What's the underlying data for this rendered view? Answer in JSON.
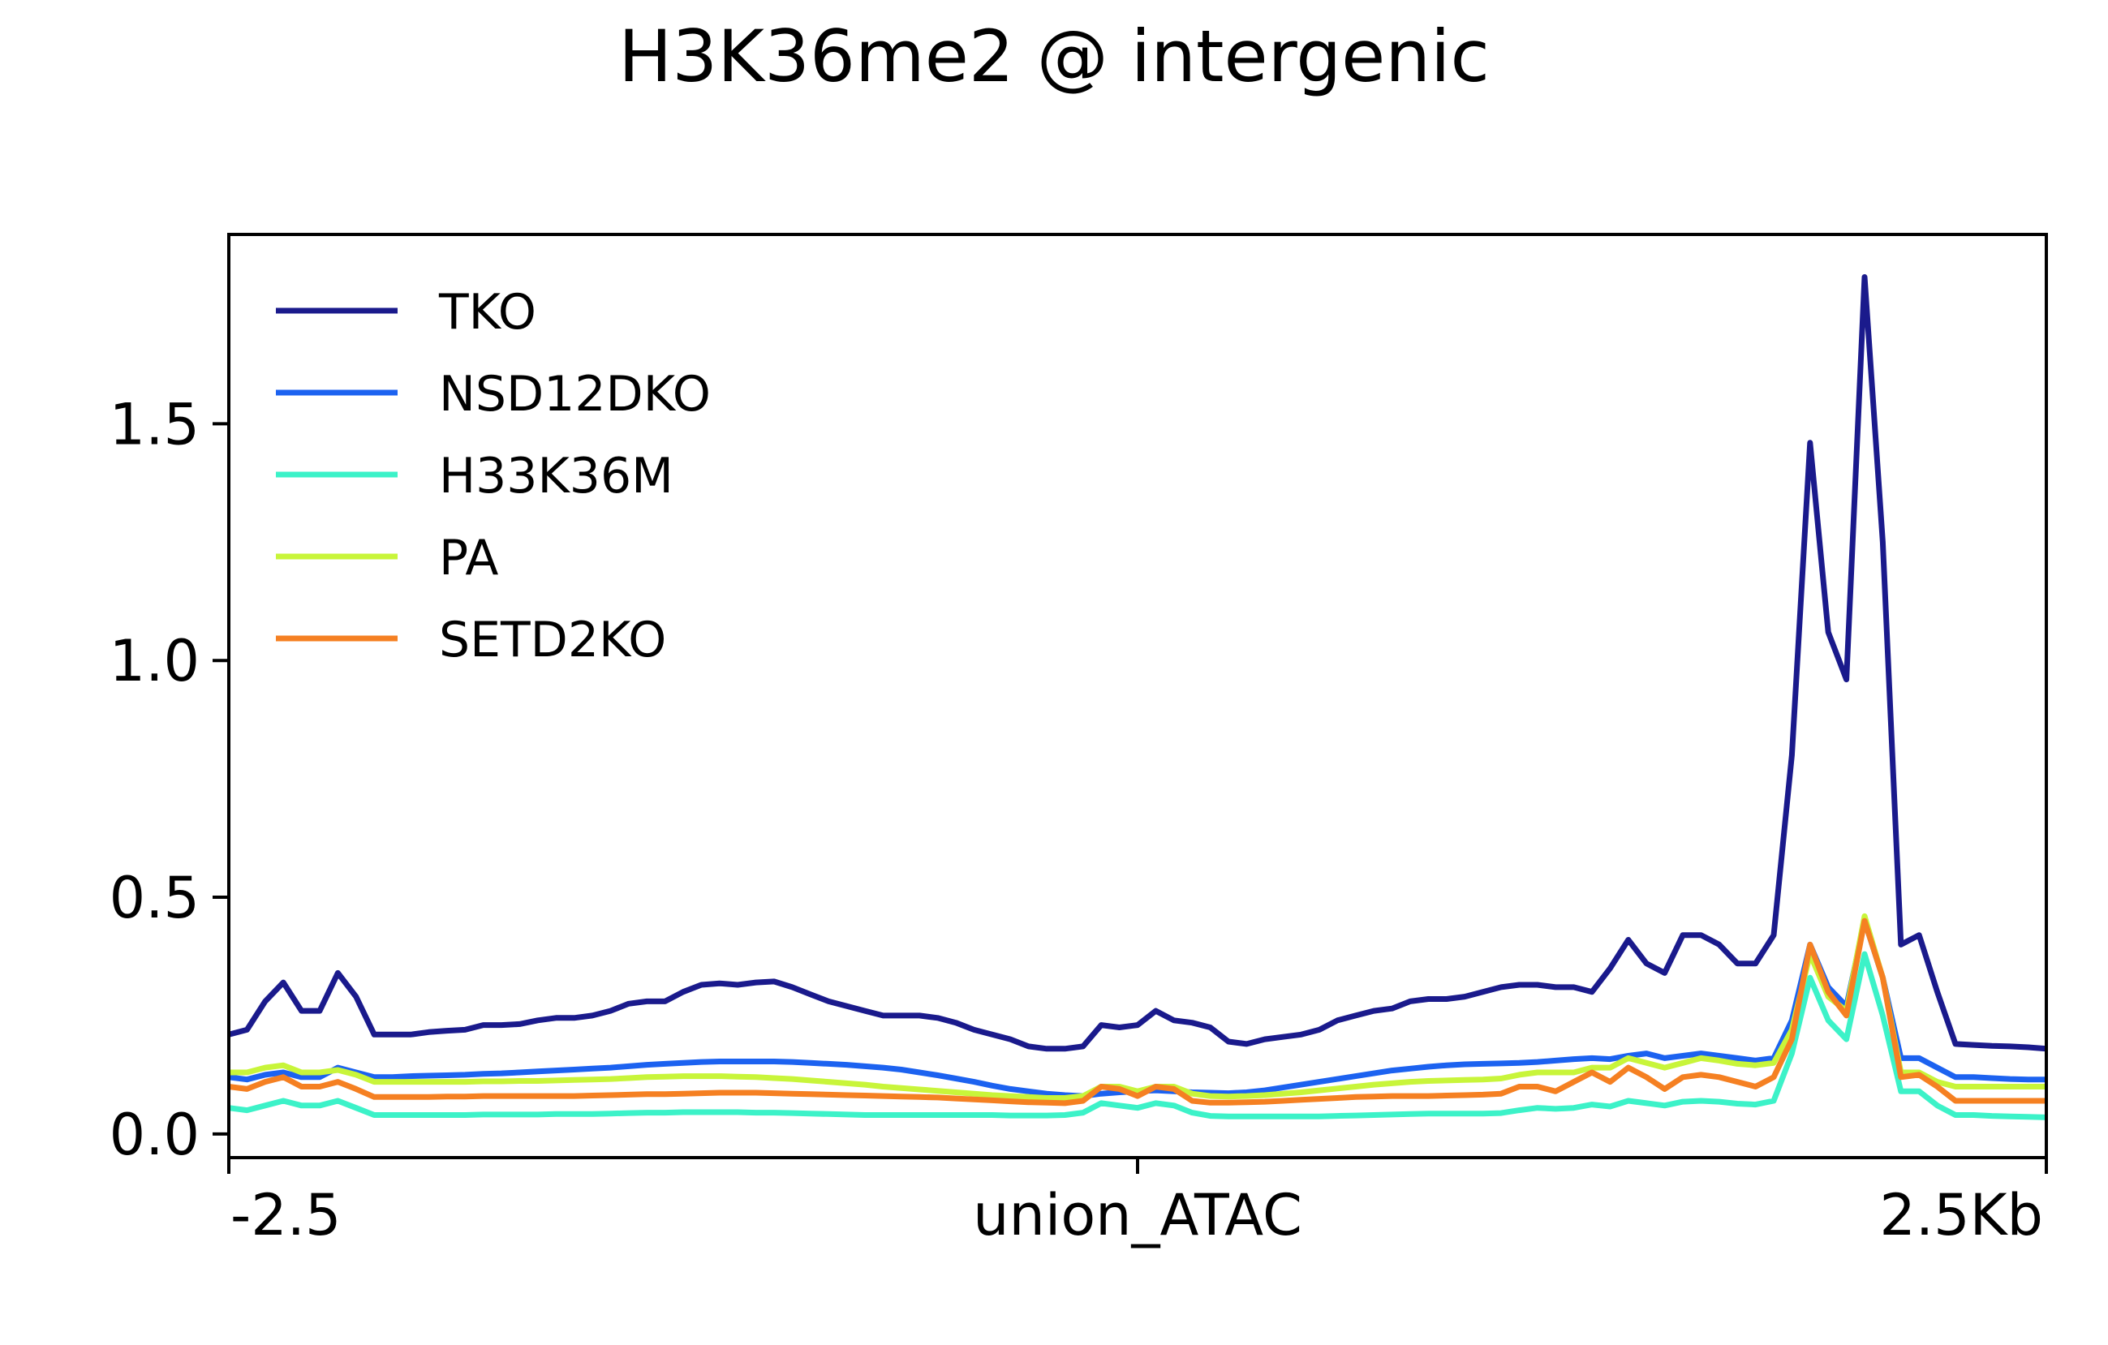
{
  "chart_data": {
    "type": "line",
    "title": "H3K36me2 @ intergenic",
    "xlabel": "",
    "ylabel": "",
    "xlim": [
      0,
      100
    ],
    "ylim": [
      -0.05,
      1.9
    ],
    "x_ticks": [
      {
        "value": 0,
        "label": "-2.5"
      },
      {
        "value": 50,
        "label": "union_ATAC"
      },
      {
        "value": 100,
        "label": "2.5Kb"
      }
    ],
    "y_ticks": [
      {
        "value": 0.0,
        "label": "0.0"
      },
      {
        "value": 0.5,
        "label": "0.5"
      },
      {
        "value": 1.0,
        "label": "1.0"
      },
      {
        "value": 1.5,
        "label": "1.5"
      }
    ],
    "grid": false,
    "legend_position": "top-left",
    "x": [
      0,
      1,
      2,
      3,
      4,
      5,
      6,
      7,
      8,
      9,
      10,
      11,
      12,
      13,
      14,
      15,
      16,
      17,
      18,
      19,
      20,
      21,
      22,
      23,
      24,
      25,
      26,
      27,
      28,
      29,
      30,
      31,
      32,
      33,
      34,
      35,
      36,
      37,
      38,
      39,
      40,
      41,
      42,
      43,
      44,
      45,
      46,
      47,
      48,
      49,
      50,
      51,
      52,
      53,
      54,
      55,
      56,
      57,
      58,
      59,
      60,
      61,
      62,
      63,
      64,
      65,
      66,
      67,
      68,
      69,
      70,
      71,
      72,
      73,
      74,
      75,
      76,
      77,
      78,
      79,
      80,
      81,
      82,
      83,
      84,
      85,
      86,
      87,
      88,
      89,
      90,
      91,
      92,
      93,
      94,
      95,
      96,
      97,
      98,
      99,
      100
    ],
    "series": [
      {
        "name": "TKO",
        "color": "#1a1a8c",
        "values": [
          0.21,
          0.22,
          0.28,
          0.32,
          0.26,
          0.26,
          0.34,
          0.29,
          0.21,
          0.21,
          0.21,
          0.215,
          0.218,
          0.22,
          0.23,
          0.23,
          0.232,
          0.24,
          0.245,
          0.245,
          0.25,
          0.26,
          0.275,
          0.28,
          0.28,
          0.3,
          0.315,
          0.318,
          0.315,
          0.32,
          0.322,
          0.31,
          0.295,
          0.28,
          0.27,
          0.26,
          0.25,
          0.25,
          0.25,
          0.245,
          0.235,
          0.22,
          0.21,
          0.2,
          0.185,
          0.18,
          0.18,
          0.185,
          0.23,
          0.225,
          0.23,
          0.26,
          0.24,
          0.235,
          0.225,
          0.195,
          0.19,
          0.2,
          0.205,
          0.21,
          0.22,
          0.24,
          0.25,
          0.26,
          0.265,
          0.28,
          0.285,
          0.285,
          0.29,
          0.3,
          0.31,
          0.315,
          0.315,
          0.31,
          0.31,
          0.3,
          0.35,
          0.41,
          0.36,
          0.34,
          0.42,
          0.42,
          0.4,
          0.36,
          0.36,
          0.42,
          0.8,
          1.46,
          1.06,
          0.96,
          1.81,
          1.25,
          0.4,
          0.42,
          0.3,
          0.19,
          0.188,
          0.186,
          0.185,
          0.183,
          0.18
        ]
      },
      {
        "name": "NSD12DKO",
        "color": "#1c62f0",
        "values": [
          0.12,
          0.115,
          0.125,
          0.13,
          0.12,
          0.12,
          0.14,
          0.13,
          0.12,
          0.12,
          0.122,
          0.123,
          0.124,
          0.125,
          0.127,
          0.128,
          0.13,
          0.132,
          0.134,
          0.136,
          0.138,
          0.14,
          0.143,
          0.146,
          0.148,
          0.15,
          0.152,
          0.153,
          0.153,
          0.153,
          0.153,
          0.152,
          0.15,
          0.148,
          0.146,
          0.143,
          0.14,
          0.136,
          0.13,
          0.124,
          0.117,
          0.11,
          0.102,
          0.095,
          0.09,
          0.085,
          0.082,
          0.08,
          0.085,
          0.088,
          0.09,
          0.092,
          0.09,
          0.088,
          0.087,
          0.086,
          0.088,
          0.092,
          0.098,
          0.104,
          0.11,
          0.116,
          0.122,
          0.128,
          0.134,
          0.138,
          0.142,
          0.145,
          0.147,
          0.148,
          0.149,
          0.15,
          0.152,
          0.155,
          0.158,
          0.16,
          0.158,
          0.165,
          0.17,
          0.16,
          0.165,
          0.17,
          0.165,
          0.16,
          0.155,
          0.16,
          0.24,
          0.4,
          0.31,
          0.27,
          0.45,
          0.33,
          0.16,
          0.16,
          0.14,
          0.12,
          0.12,
          0.118,
          0.116,
          0.115,
          0.115
        ]
      },
      {
        "name": "H33K36M",
        "color": "#3cf2c8",
        "values": [
          0.055,
          0.05,
          0.06,
          0.07,
          0.06,
          0.06,
          0.07,
          0.055,
          0.04,
          0.04,
          0.04,
          0.04,
          0.04,
          0.04,
          0.041,
          0.041,
          0.041,
          0.041,
          0.042,
          0.042,
          0.042,
          0.043,
          0.044,
          0.045,
          0.045,
          0.046,
          0.046,
          0.046,
          0.046,
          0.045,
          0.045,
          0.044,
          0.043,
          0.042,
          0.041,
          0.04,
          0.04,
          0.04,
          0.04,
          0.04,
          0.04,
          0.04,
          0.04,
          0.039,
          0.039,
          0.039,
          0.04,
          0.045,
          0.065,
          0.06,
          0.055,
          0.065,
          0.06,
          0.045,
          0.038,
          0.037,
          0.037,
          0.037,
          0.037,
          0.037,
          0.037,
          0.038,
          0.039,
          0.04,
          0.041,
          0.042,
          0.043,
          0.043,
          0.043,
          0.043,
          0.044,
          0.05,
          0.055,
          0.053,
          0.055,
          0.062,
          0.058,
          0.07,
          0.065,
          0.06,
          0.068,
          0.07,
          0.068,
          0.064,
          0.062,
          0.07,
          0.17,
          0.33,
          0.24,
          0.2,
          0.38,
          0.25,
          0.09,
          0.09,
          0.06,
          0.04,
          0.04,
          0.038,
          0.037,
          0.036,
          0.035
        ]
      },
      {
        "name": "PA",
        "color": "#c8f53a",
        "values": [
          0.13,
          0.13,
          0.14,
          0.145,
          0.13,
          0.13,
          0.135,
          0.125,
          0.11,
          0.11,
          0.11,
          0.11,
          0.11,
          0.11,
          0.111,
          0.111,
          0.112,
          0.112,
          0.113,
          0.114,
          0.115,
          0.116,
          0.118,
          0.12,
          0.121,
          0.122,
          0.122,
          0.122,
          0.121,
          0.12,
          0.118,
          0.116,
          0.113,
          0.11,
          0.107,
          0.104,
          0.1,
          0.097,
          0.094,
          0.091,
          0.088,
          0.085,
          0.082,
          0.08,
          0.078,
          0.076,
          0.076,
          0.08,
          0.1,
          0.1,
          0.09,
          0.1,
          0.1,
          0.085,
          0.08,
          0.079,
          0.08,
          0.082,
          0.085,
          0.088,
          0.092,
          0.096,
          0.1,
          0.104,
          0.107,
          0.11,
          0.112,
          0.113,
          0.114,
          0.115,
          0.117,
          0.125,
          0.13,
          0.13,
          0.13,
          0.14,
          0.14,
          0.16,
          0.15,
          0.14,
          0.15,
          0.16,
          0.155,
          0.148,
          0.145,
          0.15,
          0.22,
          0.38,
          0.29,
          0.26,
          0.46,
          0.33,
          0.13,
          0.13,
          0.11,
          0.1,
          0.1,
          0.1,
          0.1,
          0.1,
          0.1
        ]
      },
      {
        "name": "SETD2KO",
        "color": "#f58022",
        "values": [
          0.1,
          0.095,
          0.11,
          0.12,
          0.1,
          0.1,
          0.11,
          0.095,
          0.078,
          0.078,
          0.078,
          0.078,
          0.079,
          0.079,
          0.08,
          0.08,
          0.08,
          0.08,
          0.08,
          0.08,
          0.081,
          0.082,
          0.083,
          0.084,
          0.084,
          0.085,
          0.086,
          0.087,
          0.087,
          0.087,
          0.086,
          0.085,
          0.084,
          0.083,
          0.082,
          0.081,
          0.08,
          0.079,
          0.078,
          0.077,
          0.075,
          0.073,
          0.071,
          0.069,
          0.067,
          0.066,
          0.065,
          0.07,
          0.1,
          0.095,
          0.08,
          0.1,
          0.095,
          0.07,
          0.066,
          0.066,
          0.067,
          0.068,
          0.07,
          0.072,
          0.074,
          0.076,
          0.078,
          0.079,
          0.08,
          0.08,
          0.08,
          0.081,
          0.082,
          0.083,
          0.085,
          0.1,
          0.1,
          0.09,
          0.11,
          0.13,
          0.11,
          0.14,
          0.12,
          0.095,
          0.12,
          0.125,
          0.12,
          0.11,
          0.1,
          0.12,
          0.2,
          0.4,
          0.3,
          0.25,
          0.45,
          0.33,
          0.12,
          0.125,
          0.1,
          0.07,
          0.07,
          0.07,
          0.07,
          0.07,
          0.07
        ]
      }
    ]
  }
}
